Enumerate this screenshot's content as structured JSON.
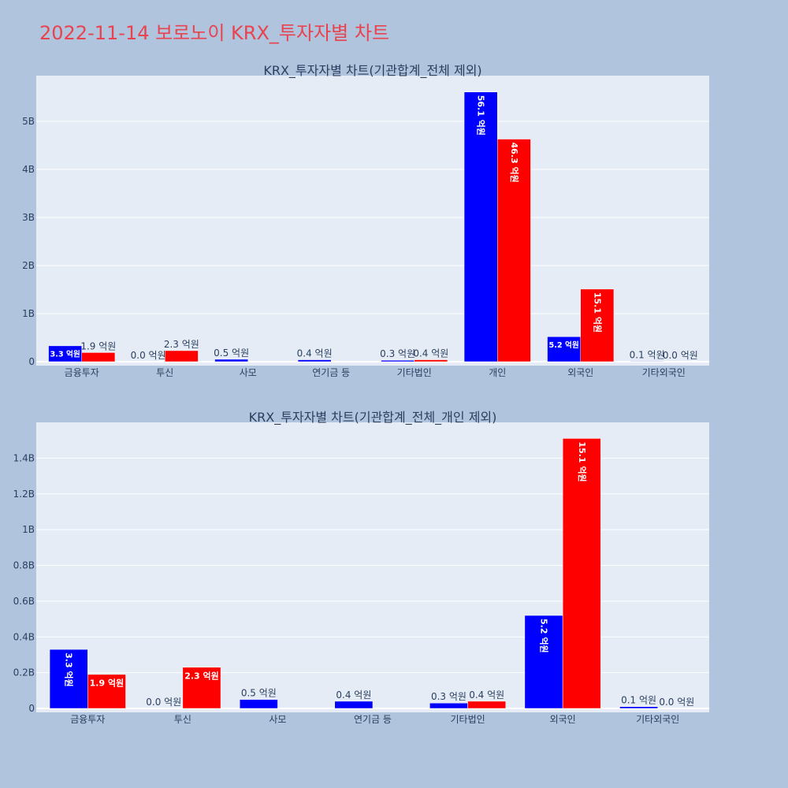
{
  "page": {
    "title": "2022-11-14 보로노이 KRX_투자자별 차트"
  },
  "colors": {
    "page_background": "#b0c4de",
    "plot_background": "#e5ecf6",
    "gridline": "#ffffff",
    "title": "#e8434f",
    "text": "#2a3f5f",
    "buy": "#0000ff",
    "sell": "#ff0000"
  },
  "chart_data": [
    {
      "type": "bar",
      "title": "KRX_투자자별 차트(기관합계_전체 제외)",
      "categories": [
        "금융투자",
        "투신",
        "사모",
        "연기금 등",
        "기타법인",
        "개인",
        "외국인",
        "기타외국인"
      ],
      "ylim": [
        0,
        5950000000
      ],
      "yticks": [
        0,
        1000000000,
        2000000000,
        3000000000,
        4000000000,
        5000000000
      ],
      "ytick_labels": [
        "0",
        "1B",
        "2B",
        "3B",
        "4B",
        "5B"
      ],
      "grid": true,
      "series": [
        {
          "color": "#0000ff",
          "values": [
            330000000,
            0,
            50000000,
            40000000,
            30000000,
            5610000000,
            520000000,
            10000000
          ],
          "labels": [
            "3.3 억원",
            "0.0 억원",
            "0.5 억원",
            "0.4 억원",
            "0.3 억원",
            "56.1 억원",
            "5.2 억원",
            "0.1 억원"
          ]
        },
        {
          "color": "#ff0000",
          "values": [
            190000000,
            230000000,
            0,
            0,
            40000000,
            4630000000,
            1510000000,
            0
          ],
          "labels": [
            "1.9 억원",
            "2.3 억원",
            "",
            "",
            "0.4 억원",
            "46.3 억원",
            "15.1 억원",
            "0.0 억원"
          ]
        }
      ]
    },
    {
      "type": "bar",
      "title": "KRX_투자자별 차트(기관합계_전체_개인 제외)",
      "categories": [
        "금융투자",
        "투신",
        "사모",
        "연기금 등",
        "기타법인",
        "외국인",
        "기타외국인"
      ],
      "ylim": [
        0,
        1600000000
      ],
      "yticks": [
        0,
        200000000,
        400000000,
        600000000,
        800000000,
        1000000000,
        1200000000,
        1400000000
      ],
      "ytick_labels": [
        "0",
        "0.2B",
        "0.4B",
        "0.6B",
        "0.8B",
        "1B",
        "1.2B",
        "1.4B"
      ],
      "grid": true,
      "series": [
        {
          "color": "#0000ff",
          "values": [
            330000000,
            0,
            50000000,
            40000000,
            30000000,
            520000000,
            10000000
          ],
          "labels": [
            "3.3 억원",
            "0.0 억원",
            "0.5 억원",
            "0.4 억원",
            "0.3 억원",
            "5.2 억원",
            "0.1 억원"
          ]
        },
        {
          "color": "#ff0000",
          "values": [
            190000000,
            230000000,
            0,
            0,
            40000000,
            1510000000,
            0
          ],
          "labels": [
            "1.9 억원",
            "2.3 억원",
            "",
            "",
            "0.4 억원",
            "15.1 억원",
            "0.0 억원"
          ]
        }
      ]
    }
  ]
}
